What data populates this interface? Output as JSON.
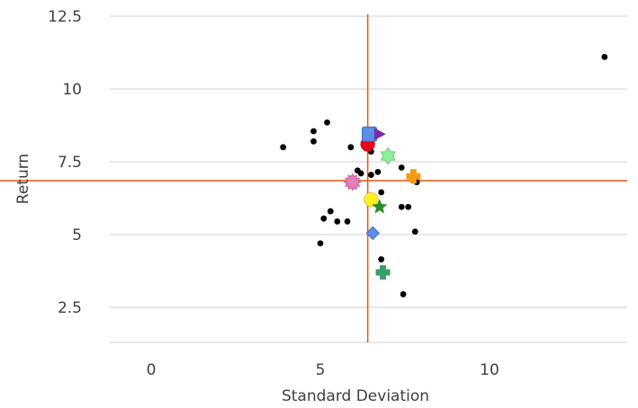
{
  "chart_data": {
    "type": "scatter",
    "title": "",
    "xlabel": "Standard Deviation",
    "ylabel": "Return",
    "xlim": [
      -1.2,
      14
    ],
    "ylim": [
      1.2,
      13.5
    ],
    "xticks": [
      "0",
      "5",
      "10"
    ],
    "xtick_values": [
      0,
      5,
      10
    ],
    "yticks": [
      "2.5",
      "5",
      "7.5",
      "10",
      "12.5"
    ],
    "ytick_values": [
      2.5,
      5,
      7.5,
      10,
      12.5
    ],
    "grid": "horizontal",
    "reference_lines": [
      {
        "orientation": "vertical",
        "x": 6.4,
        "color": "#e0621f"
      },
      {
        "orientation": "horizontal",
        "y": 6.85,
        "color": "#e0621f"
      }
    ],
    "series": [
      {
        "marker": "circle-small",
        "color": "#000000",
        "points": [
          [
            3.9,
            8.0
          ],
          [
            4.8,
            8.55
          ],
          [
            4.8,
            8.2
          ],
          [
            5.2,
            8.85
          ],
          [
            5.9,
            8.0
          ],
          [
            6.6,
            8.5
          ],
          [
            6.5,
            7.85
          ],
          [
            6.1,
            7.2
          ],
          [
            6.2,
            7.1
          ],
          [
            6.5,
            7.05
          ],
          [
            6.7,
            7.15
          ],
          [
            7.4,
            7.3
          ],
          [
            6.8,
            6.45
          ],
          [
            7.4,
            5.95
          ],
          [
            7.6,
            5.95
          ],
          [
            7.85,
            6.8
          ],
          [
            7.8,
            5.1
          ],
          [
            5.1,
            5.55
          ],
          [
            5.3,
            5.8
          ],
          [
            5.5,
            5.45
          ],
          [
            5.8,
            5.45
          ],
          [
            5.0,
            4.7
          ],
          [
            6.8,
            4.15
          ],
          [
            7.45,
            2.95
          ],
          [
            13.4,
            11.1
          ]
        ]
      },
      {
        "marker": "circle",
        "color": "#e8001c",
        "points": [
          [
            6.4,
            8.1
          ]
        ]
      },
      {
        "marker": "square",
        "color": "#5b8fe6",
        "points": [
          [
            6.45,
            8.45
          ]
        ]
      },
      {
        "marker": "triangle-right",
        "color": "#7a2ca8",
        "points": [
          [
            6.75,
            8.45
          ]
        ]
      },
      {
        "marker": "star-6",
        "color": "#8ff09a",
        "points": [
          [
            7.0,
            7.7
          ]
        ]
      },
      {
        "marker": "plus",
        "color": "#f39a12",
        "points": [
          [
            7.75,
            7.0
          ]
        ]
      },
      {
        "marker": "sunburst",
        "color": "#e47eb4",
        "points": [
          [
            5.95,
            6.8
          ]
        ]
      },
      {
        "marker": "circle",
        "color": "#ffee22",
        "points": [
          [
            6.5,
            6.2
          ]
        ]
      },
      {
        "marker": "star-5",
        "color": "#2f8a2a",
        "points": [
          [
            6.75,
            5.95
          ]
        ]
      },
      {
        "marker": "diamond",
        "color": "#5b8fe6",
        "points": [
          [
            6.55,
            5.05
          ]
        ]
      },
      {
        "marker": "plus",
        "color": "#3a9e6a",
        "points": [
          [
            6.85,
            3.7
          ]
        ]
      }
    ]
  }
}
